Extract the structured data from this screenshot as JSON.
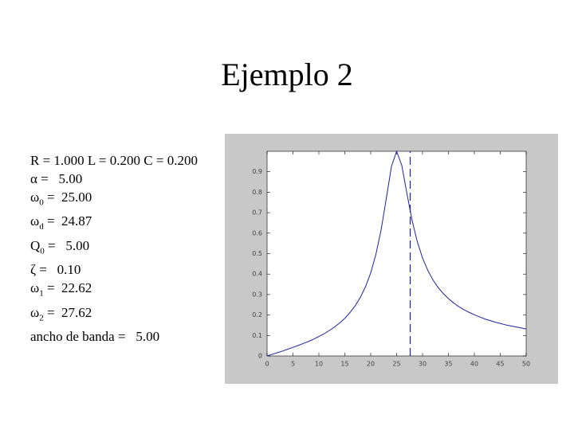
{
  "title": "Ejemplo 2",
  "params": [
    {
      "label": "R = 1.000 L = 0.200 C = 0.200"
    },
    {
      "label": "α",
      "value": " =   5.00"
    },
    {
      "label": "ω",
      "sub": "0",
      "value": " =  25.00"
    },
    {
      "label": "ω",
      "sub": "d",
      "value": " =  24.87"
    },
    {
      "label": "Q",
      "sub": "0",
      "value": " =   5.00"
    },
    {
      "label": "ζ",
      "value": " =   0.10"
    },
    {
      "label": "ω",
      "sub": "1",
      "value": " =  22.62"
    },
    {
      "label": "ω",
      "sub": "2",
      "value": " =  27.62"
    },
    {
      "label": "ancho de banda =   5.00"
    }
  ],
  "chart_data": {
    "type": "line",
    "x": [
      0,
      1,
      2,
      3,
      4,
      5,
      6,
      7,
      8,
      9,
      10,
      11,
      12,
      13,
      14,
      15,
      16,
      17,
      18,
      19,
      20,
      21,
      22,
      23,
      24,
      25,
      26,
      27,
      28,
      29,
      30,
      31,
      32,
      33,
      34,
      35,
      36,
      37,
      38,
      39,
      40,
      41,
      42,
      43,
      44,
      45,
      46,
      47,
      48,
      49,
      50
    ],
    "series": [
      {
        "color": "#2020a0",
        "values": [
          0,
          0.008,
          0.016,
          0.024,
          0.033,
          0.042,
          0.051,
          0.061,
          0.071,
          0.082,
          0.095,
          0.108,
          0.124,
          0.141,
          0.161,
          0.184,
          0.212,
          0.245,
          0.286,
          0.339,
          0.406,
          0.496,
          0.615,
          0.768,
          0.926,
          1,
          0.931,
          0.792,
          0.661,
          0.557,
          0.479,
          0.419,
          0.372,
          0.335,
          0.305,
          0.28,
          0.259,
          0.241,
          0.226,
          0.213,
          0.201,
          0.191,
          0.181,
          0.173,
          0.165,
          0.159,
          0.152,
          0.147,
          0.142,
          0.137,
          0.132
        ]
      }
    ],
    "vlines": [
      27.62
    ],
    "xlim": [
      0,
      50
    ],
    "xticks": [
      0,
      5,
      10,
      15,
      20,
      25,
      30,
      35,
      40,
      45,
      50
    ],
    "ylim": [
      0,
      1
    ],
    "yticks": [
      0,
      0.1,
      0.2,
      0.3,
      0.4,
      0.5,
      0.6,
      0.7,
      0.8,
      0.9
    ]
  }
}
